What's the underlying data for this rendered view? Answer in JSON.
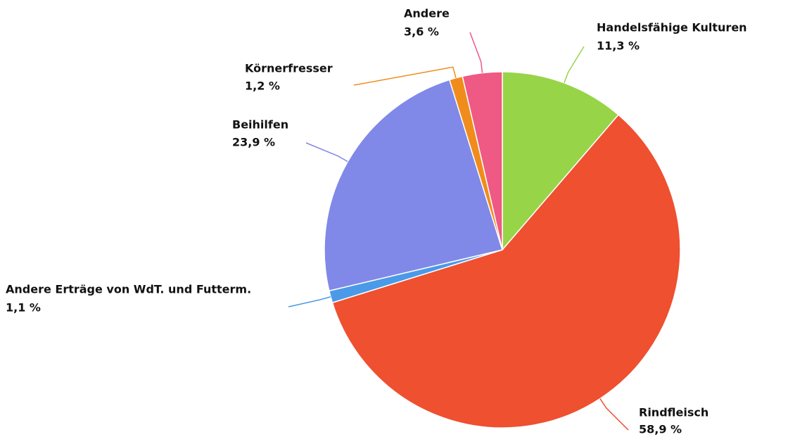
{
  "chart_data": {
    "type": "pie",
    "categories": [
      "Handelsfähige Kulturen",
      "Rindfleisch",
      "Andere Erträge von WdT. und Futterm.",
      "Beihilfen",
      "Körnerfresser",
      "Andere"
    ],
    "values": [
      11.3,
      58.9,
      1.1,
      23.9,
      1.2,
      3.6
    ],
    "value_labels": [
      "11,3 %",
      "58,9 %",
      "1,1 %",
      "23,9 %",
      "1,2 %",
      "3,6 %"
    ],
    "colors": [
      "#98d448",
      "#ee5030",
      "#4a9ae8",
      "#8088e8",
      "#f08c1c",
      "#ee5a84"
    ]
  }
}
